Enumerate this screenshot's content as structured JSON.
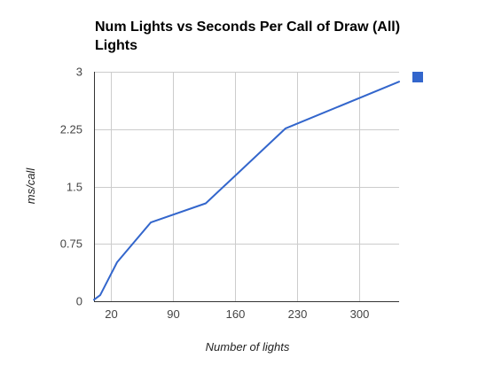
{
  "chart_data": {
    "type": "line",
    "title": "Num Lights vs Seconds Per Call of Draw (All) Lights",
    "xlabel": "Number of lights",
    "ylabel": "ms/call",
    "xlim": [
      1,
      345
    ],
    "ylim": [
      0,
      3
    ],
    "x_ticks": [
      20,
      90,
      160,
      230,
      300
    ],
    "y_ticks": [
      0,
      0.75,
      1.5,
      2.25,
      3
    ],
    "y_tick_labels": [
      "0",
      "0.75",
      "1.5",
      "2.25",
      "3"
    ],
    "x_tick_labels": [
      "20",
      "90",
      "160",
      "230",
      "300"
    ],
    "grid": true,
    "legend": "right",
    "series": [
      {
        "color": "#3366cc",
        "x": [
          1,
          8,
          27,
          65,
          127,
          217,
          345
        ],
        "y": [
          0.02,
          0.08,
          0.51,
          1.03,
          1.28,
          2.26,
          2.87
        ]
      }
    ]
  }
}
